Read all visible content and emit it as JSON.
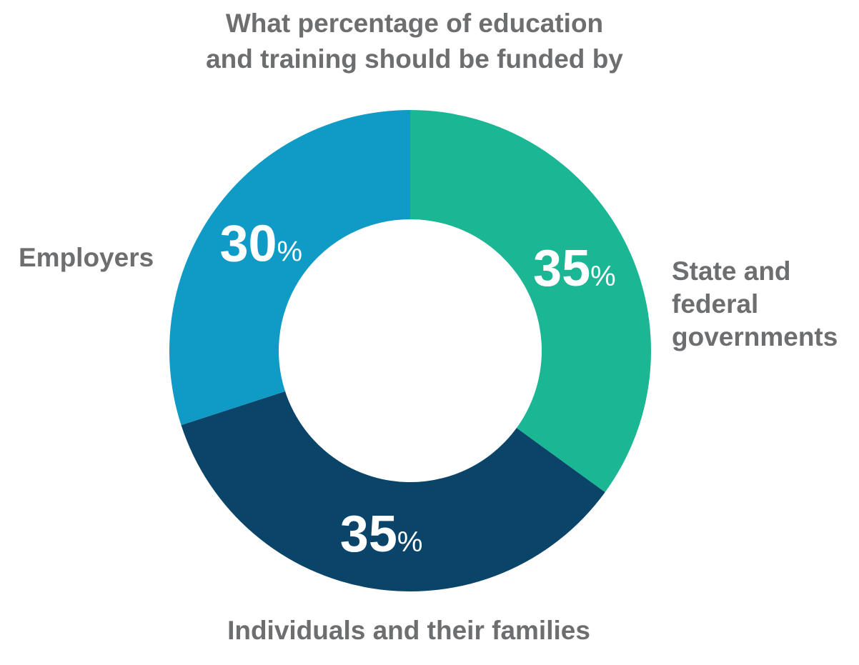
{
  "chart_data": {
    "type": "pie",
    "donut": true,
    "title_lines": [
      "What percentage of education",
      "and training should be funded by"
    ],
    "categories": [
      "State and federal governments",
      "Individuals and their families",
      "Employers"
    ],
    "values": [
      35,
      35,
      30
    ],
    "value_unit": "%",
    "slices": [
      {
        "label_lines": [
          "State and",
          "federal",
          "governments"
        ],
        "value": 35,
        "value_text": "35",
        "unit": "%",
        "color": "#1bb694"
      },
      {
        "label_lines": [
          "Individuals and their families"
        ],
        "value": 35,
        "value_text": "35",
        "unit": "%",
        "color": "#0a4469"
      },
      {
        "label_lines": [
          "Employers"
        ],
        "value": 30,
        "value_text": "30",
        "unit": "%",
        "color": "#109bc6"
      }
    ],
    "legend": "none",
    "start_angle_deg": 0,
    "direction": "clockwise"
  },
  "colors": {
    "text": "#6d6e70",
    "value_text": "#ffffff",
    "background": "#ffffff"
  }
}
